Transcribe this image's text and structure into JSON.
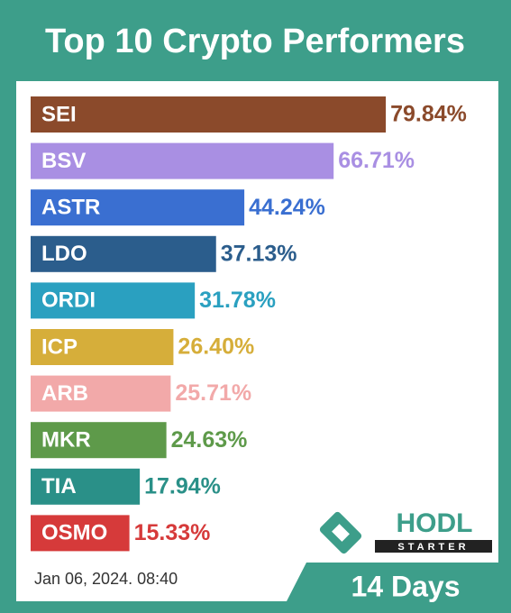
{
  "chart_data": {
    "type": "bar",
    "orientation": "horizontal",
    "title": "Top 10 Crypto Performers",
    "categories": [
      "SEI",
      "BSV",
      "ASTR",
      "LDO",
      "ORDI",
      "ICP",
      "ARB",
      "MKR",
      "TIA",
      "OSMO"
    ],
    "values": [
      79.84,
      66.71,
      44.24,
      37.13,
      31.78,
      26.4,
      25.71,
      24.63,
      17.94,
      15.33
    ],
    "value_labels": [
      "79.84%",
      "66.71%",
      "44.24%",
      "37.13%",
      "31.78%",
      "26.40%",
      "25.71%",
      "24.63%",
      "17.94%",
      "15.33%"
    ],
    "colors": [
      "#8b4a2b",
      "#a98fe3",
      "#3a6fd1",
      "#2b5d8c",
      "#2aa0c0",
      "#d6ae3a",
      "#f2a9a9",
      "#5e9a4a",
      "#2a9088",
      "#d63a3a"
    ],
    "date": "Jan 06, 2024. 08:40",
    "period": "14 Days",
    "logo": {
      "name": "HODL",
      "tagline": "STARTER"
    }
  }
}
